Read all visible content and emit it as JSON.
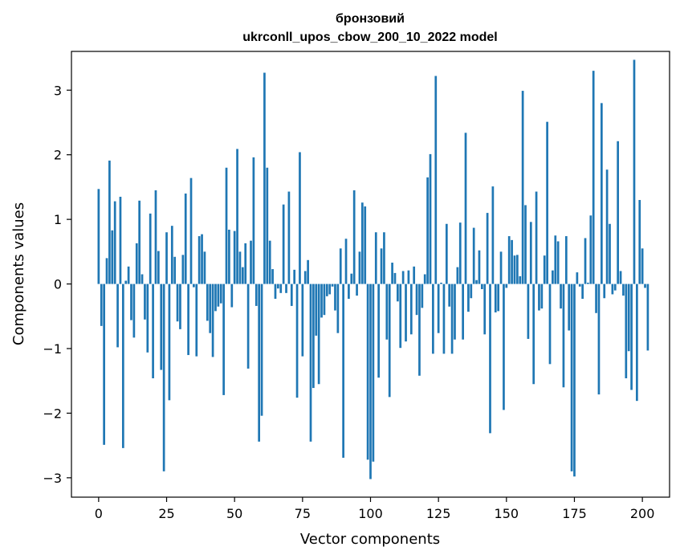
{
  "chart_data": {
    "type": "bar",
    "title_line1": "бронзовий",
    "title_line2": "ukrconll_upos_cbow_200_10_2022 model",
    "xlabel": "Vector components",
    "ylabel": "Components values",
    "xlim": [
      -10,
      210
    ],
    "ylim": [
      -3.3,
      3.6
    ],
    "grid": false,
    "bar_color": "#1f77b4",
    "x_ticks": [
      0,
      25,
      50,
      75,
      100,
      125,
      150,
      175,
      200
    ],
    "x_tick_labels": [
      "0",
      "25",
      "50",
      "75",
      "100",
      "125",
      "150",
      "175",
      "200"
    ],
    "y_ticks": [
      -3,
      -2,
      -1,
      0,
      1,
      2,
      3
    ],
    "y_tick_labels": [
      "−3",
      "−2",
      "−1",
      "0",
      "1",
      "2",
      "3"
    ],
    "values": [
      1.47,
      -0.65,
      -2.49,
      0.4,
      1.91,
      0.83,
      1.28,
      -0.98,
      1.35,
      -2.54,
      0.05,
      0.27,
      -0.56,
      -0.83,
      0.63,
      1.29,
      0.15,
      -0.55,
      -1.06,
      1.09,
      -1.46,
      1.45,
      0.51,
      -1.33,
      -2.9,
      0.8,
      -1.8,
      0.9,
      0.42,
      -0.58,
      -0.7,
      0.45,
      1.4,
      -1.1,
      1.64,
      -0.05,
      -1.12,
      0.74,
      0.77,
      0.5,
      -0.57,
      -0.76,
      -1.13,
      -0.42,
      -0.35,
      -0.3,
      -1.72,
      1.8,
      0.84,
      -0.36,
      0.82,
      2.09,
      0.5,
      0.26,
      0.63,
      -1.31,
      0.67,
      1.96,
      -0.34,
      -2.44,
      -2.04,
      3.27,
      1.8,
      0.67,
      0.23,
      -0.23,
      -0.07,
      -0.14,
      1.23,
      -0.14,
      1.43,
      -0.34,
      0.22,
      -1.76,
      2.04,
      -1.12,
      0.2,
      0.37,
      -2.44,
      -1.61,
      -0.8,
      -1.55,
      -0.52,
      -0.48,
      -0.19,
      -0.16,
      -0.04,
      -0.41,
      -0.76,
      0.55,
      -2.69,
      0.7,
      -0.23,
      0.16,
      1.45,
      -0.18,
      0.5,
      1.26,
      1.2,
      -2.72,
      -3.02,
      -2.75,
      0.8,
      -1.45,
      0.55,
      0.8,
      -0.86,
      -1.75,
      0.33,
      0.17,
      -0.27,
      -0.99,
      0.2,
      -0.89,
      0.21,
      -0.78,
      0.27,
      -0.48,
      -1.42,
      -0.37,
      0.15,
      1.65,
      2.01,
      -1.08,
      3.22,
      -0.76,
      0.02,
      -1.08,
      0.93,
      -0.35,
      -1.08,
      -0.86,
      0.26,
      0.95,
      -0.86,
      2.34,
      -0.43,
      -0.22,
      0.87,
      0.06,
      0.52,
      -0.08,
      -0.78,
      1.1,
      -2.31,
      1.51,
      -0.44,
      -0.42,
      0.5,
      -1.95,
      -0.06,
      0.74,
      0.68,
      0.44,
      0.45,
      0.12,
      2.99,
      1.22,
      -0.85,
      0.96,
      -1.55,
      1.43,
      -0.41,
      -0.38,
      0.44,
      2.51,
      -1.24,
      0.21,
      0.75,
      0.66,
      -0.38,
      -1.6,
      0.74,
      -0.72,
      -2.9,
      -2.98,
      0.18,
      -0.04,
      -0.23,
      0.71,
      0.02,
      1.06,
      3.3,
      -0.45,
      -1.71,
      2.8,
      -0.22,
      1.77,
      0.93,
      -0.16,
      -0.1,
      2.21,
      0.2,
      -0.18,
      -1.46,
      -1.04,
      -1.64,
      3.47,
      -1.81,
      1.3,
      0.55,
      -0.06,
      -1.03
    ]
  }
}
